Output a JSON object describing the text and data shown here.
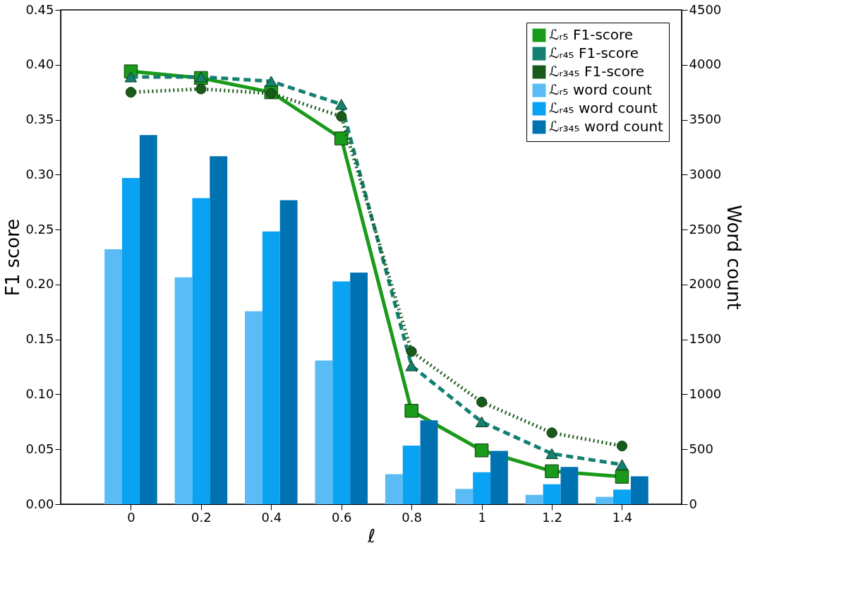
{
  "chart_data": {
    "type": "bar",
    "xlabel": "ℓ",
    "ylabel": "F1 score",
    "y2label": "Word count",
    "x": [
      0,
      0.2,
      0.4,
      0.6,
      0.8,
      1,
      1.2,
      1.4
    ],
    "xlim": [
      -0.2,
      1.57
    ],
    "xticks": [
      0,
      0.2,
      0.4,
      0.6,
      0.8,
      1,
      1.2,
      1.4
    ],
    "ylim": [
      0,
      0.45
    ],
    "yticks": [
      {
        "value": 0,
        "label": "0.00"
      },
      {
        "value": 0.05,
        "label": "0.05"
      },
      {
        "value": 0.1,
        "label": "0.10"
      },
      {
        "value": 0.15,
        "label": "0.15"
      },
      {
        "value": 0.2,
        "label": "0.20"
      },
      {
        "value": 0.25,
        "label": "0.25"
      },
      {
        "value": 0.3,
        "label": "0.30"
      },
      {
        "value": 0.35,
        "label": "0.35"
      },
      {
        "value": 0.4,
        "label": "0.40"
      },
      {
        "value": 0.45,
        "label": "0.45"
      }
    ],
    "y2lim": [
      0,
      4500
    ],
    "y2ticks": [
      0,
      500,
      1000,
      1500,
      2000,
      2500,
      3000,
      3500,
      4000,
      4500
    ],
    "grid": false,
    "legend": "top right",
    "series": [
      {
        "name": "ℒᵣ₅ F1-score",
        "type": "line",
        "axis": "y",
        "color": "#1a9a1a",
        "marker": "square",
        "line_style": "solid",
        "values": [
          0.394,
          0.388,
          0.375,
          0.333,
          0.085,
          0.049,
          0.03,
          0.025
        ]
      },
      {
        "name": "ℒᵣ₄₅ F1-score",
        "type": "line",
        "axis": "y",
        "color": "#138071",
        "marker": "triangle",
        "line_style": "dashed",
        "values": [
          0.389,
          0.389,
          0.385,
          0.364,
          0.126,
          0.075,
          0.046,
          0.036
        ]
      },
      {
        "name": "ℒᵣ₃₄₅ F1-score",
        "type": "line",
        "axis": "y",
        "color": "#1a5a1a",
        "marker": "circle",
        "line_style": "dotted",
        "values": [
          0.375,
          0.378,
          0.374,
          0.353,
          0.139,
          0.093,
          0.065,
          0.053
        ]
      },
      {
        "name": "ℒᵣ₅ word count",
        "axis": "y2",
        "color": "#5bbcf5",
        "values": [
          2320,
          2065,
          1757,
          1308,
          273,
          139,
          85,
          67
        ]
      },
      {
        "name": "ℒᵣ₄₅ word count",
        "axis": "y2",
        "color": "#0aa2f2",
        "values": [
          2970,
          2786,
          2483,
          2029,
          533,
          291,
          182,
          133
        ]
      },
      {
        "name": "ℒᵣ₃₄₅ word count",
        "axis": "y2",
        "color": "#0072b2",
        "values": [
          3360,
          3168,
          2768,
          2108,
          763,
          485,
          339,
          254
        ]
      }
    ]
  }
}
